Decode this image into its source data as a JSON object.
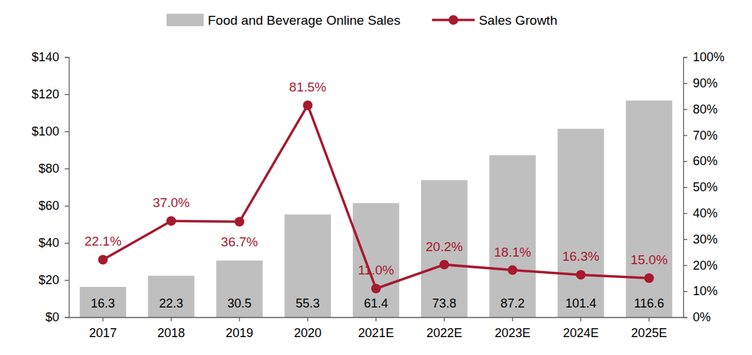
{
  "chart_data": {
    "type": "bar",
    "categories": [
      "2017",
      "2018",
      "2019",
      "2020",
      "2021E",
      "2022E",
      "2023E",
      "2024E",
      "2025E"
    ],
    "series": [
      {
        "name": "Food and Beverage Online Sales",
        "type": "bar",
        "color": "#bfbfbf",
        "values": [
          16.3,
          22.3,
          30.5,
          55.3,
          61.4,
          73.8,
          87.2,
          101.4,
          116.6
        ]
      },
      {
        "name": "Sales Growth",
        "type": "line",
        "axis": "y2",
        "color": "#a6192e",
        "marker": "circle",
        "values": [
          22.1,
          37.0,
          36.7,
          81.5,
          11.0,
          20.2,
          18.1,
          16.3,
          15.0
        ],
        "value_labels": [
          "22.1%",
          "37.0%",
          "36.7%",
          "81.5%",
          "11.0%",
          "20.2%",
          "18.1%",
          "16.3%",
          "15.0%"
        ]
      }
    ],
    "ylim": [
      0,
      140
    ],
    "yticks": [
      {
        "value": 0,
        "label": "$0"
      },
      {
        "value": 20,
        "label": "$20"
      },
      {
        "value": 40,
        "label": "$40"
      },
      {
        "value": 60,
        "label": "$60"
      },
      {
        "value": 80,
        "label": "$80"
      },
      {
        "value": 100,
        "label": "$100"
      },
      {
        "value": 120,
        "label": "$120"
      },
      {
        "value": 140,
        "label": "$140"
      }
    ],
    "y2lim": [
      0,
      100
    ],
    "y2ticks": [
      {
        "value": 0,
        "label": "0%"
      },
      {
        "value": 10,
        "label": "10%"
      },
      {
        "value": 20,
        "label": "20%"
      },
      {
        "value": 30,
        "label": "30%"
      },
      {
        "value": 40,
        "label": "40%"
      },
      {
        "value": 50,
        "label": "50%"
      },
      {
        "value": 60,
        "label": "60%"
      },
      {
        "value": 70,
        "label": "70%"
      },
      {
        "value": 80,
        "label": "80%"
      },
      {
        "value": 90,
        "label": "90%"
      },
      {
        "value": 100,
        "label": "100%"
      }
    ],
    "grid": false,
    "legend": "top",
    "data_labels": true
  }
}
